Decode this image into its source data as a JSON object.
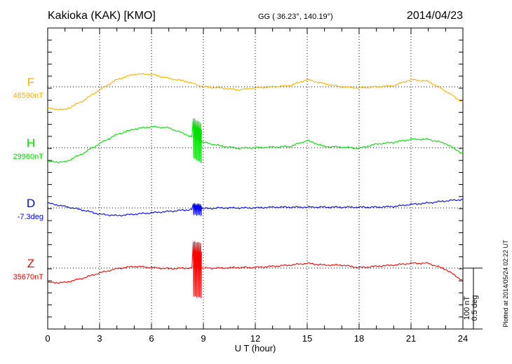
{
  "chart_data": {
    "type": "line",
    "title": "Kakioka (KAK)  [KMO]",
    "subtitle": "GG ( 36.23°, 140.19°)",
    "date": "2014/04/23",
    "xlabel": "U T (hour)",
    "xlim": [
      0,
      24
    ],
    "x_tick_labels": [
      "0",
      "3",
      "6",
      "9",
      "12",
      "15",
      "18",
      "21",
      "24"
    ],
    "grid": true,
    "scale_bar": {
      "label_nT": "100 nT",
      "label_deg": "0.5 deg",
      "value_nT": 100,
      "value_deg": 0.5
    },
    "plotted_note": "Plotted at 2014/05/24 02:22 UT",
    "x": [
      0,
      1,
      2,
      3,
      4,
      5,
      6,
      7,
      8,
      9,
      10,
      11,
      12,
      13,
      14,
      15,
      16,
      17,
      18,
      19,
      20,
      21,
      22,
      23,
      24
    ],
    "series": [
      {
        "name": "F",
        "baseline_label": "46590nT",
        "unit": "nT",
        "color": "#ffb000",
        "values": [
          -36,
          -38,
          -24,
          -5,
          12,
          21,
          21,
          14,
          9,
          0,
          -2,
          -5,
          -2,
          0,
          2,
          12,
          5,
          0,
          -2,
          0,
          2,
          12,
          9,
          -7,
          -26
        ],
        "disturbance": {
          "start": 8.4,
          "end": 8.9,
          "amplitude": 0
        }
      },
      {
        "name": "H",
        "baseline_label": "29960nT",
        "unit": "nT",
        "color": "#00e000",
        "values": [
          -23,
          -24,
          -10,
          7,
          22,
          31,
          35,
          33,
          22,
          9,
          3,
          -1,
          0,
          1,
          2,
          12,
          2,
          1,
          -1,
          6,
          9,
          14,
          14,
          7,
          -10
        ],
        "disturbance": {
          "start": 8.4,
          "end": 8.9,
          "amplitude": 35
        }
      },
      {
        "name": "D",
        "baseline_label": "-7.3deg",
        "unit": "deg",
        "color": "#0000ff",
        "values": [
          0.04,
          0.012,
          -0.017,
          -0.052,
          -0.064,
          -0.052,
          -0.041,
          -0.029,
          -0.017,
          -0.006,
          0,
          0,
          0,
          0.006,
          0.006,
          0.006,
          0.006,
          0.006,
          0.006,
          0.006,
          0.012,
          0.029,
          0.041,
          0.058,
          0.07
        ],
        "disturbance": {
          "start": 8.4,
          "end": 8.9,
          "amplitude": 0.05
        }
      },
      {
        "name": "Z",
        "baseline_label": "35670nT",
        "unit": "nT",
        "color": "#ff0000",
        "values": [
          -24,
          -24,
          -17,
          -8,
          -1,
          3,
          1,
          -1,
          0,
          0,
          0,
          1,
          1,
          3,
          5,
          8,
          5,
          5,
          1,
          3,
          5,
          8,
          8,
          -2,
          -21
        ],
        "disturbance": {
          "start": 8.4,
          "end": 8.9,
          "amplitude": 48
        }
      }
    ]
  }
}
